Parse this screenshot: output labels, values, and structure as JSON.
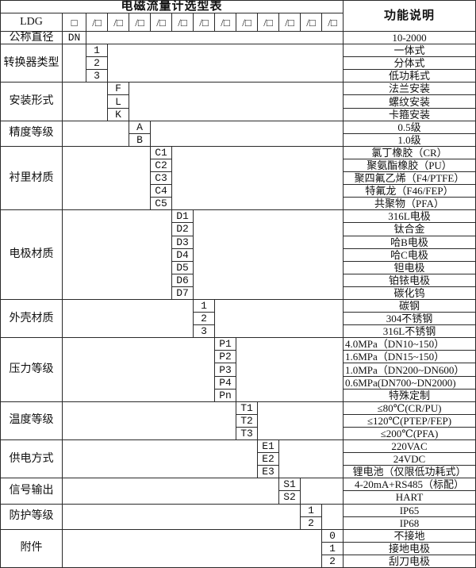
{
  "title": "电磁流量计选型表",
  "colors": {
    "background": "#ffffff",
    "border": "#2a2a2a",
    "text": "#111111"
  },
  "header": {
    "function_col": "功能说明",
    "model_prefix": "LDG",
    "box": "□",
    "slot": "/□",
    "slot_count": 12
  },
  "diameter_row": {
    "label": "公称直径",
    "code": "DN",
    "desc": "10-2000"
  },
  "sections": [
    {
      "label": "转换器类型",
      "col": 3,
      "items": [
        {
          "code": "1",
          "desc": "一体式"
        },
        {
          "code": "2",
          "desc": "分体式"
        },
        {
          "code": "3",
          "desc": "低功耗式"
        }
      ]
    },
    {
      "label": "安装形式",
      "col": 4,
      "items": [
        {
          "code": "F",
          "desc": "法兰安装"
        },
        {
          "code": "L",
          "desc": "螺纹安装"
        },
        {
          "code": "K",
          "desc": "卡箍安装"
        }
      ]
    },
    {
      "label": "精度等级",
      "col": 5,
      "items": [
        {
          "code": "A",
          "desc": "0.5级"
        },
        {
          "code": "B",
          "desc": "1.0级"
        }
      ]
    },
    {
      "label": "衬里材质",
      "col": 6,
      "items": [
        {
          "code": "C1",
          "desc": "氯丁橡胶（CR）"
        },
        {
          "code": "C2",
          "desc": "聚氨酯橡胶（PU）"
        },
        {
          "code": "C3",
          "desc": "聚四氟乙烯（F4/PTFE）"
        },
        {
          "code": "C4",
          "desc": "特氟龙（F46/FEP）"
        },
        {
          "code": "C5",
          "desc": "共聚物（PFA）"
        }
      ]
    },
    {
      "label": "电极材质",
      "col": 7,
      "items": [
        {
          "code": "D1",
          "desc": "316L电极"
        },
        {
          "code": "D2",
          "desc": "钛合金"
        },
        {
          "code": "D3",
          "desc": "哈B电极"
        },
        {
          "code": "D4",
          "desc": "哈C电极"
        },
        {
          "code": "D5",
          "desc": "钽电极"
        },
        {
          "code": "D6",
          "desc": "铂铱电极"
        },
        {
          "code": "D7",
          "desc": "碳化钨"
        }
      ]
    },
    {
      "label": "外壳材质",
      "col": 8,
      "items": [
        {
          "code": "1",
          "desc": "碳钢"
        },
        {
          "code": "2",
          "desc": "304不锈钢"
        },
        {
          "code": "3",
          "desc": "316L不锈钢"
        }
      ]
    },
    {
      "label": "压力等级",
      "col": 9,
      "items": [
        {
          "code": "P1",
          "desc": "4.0MPa（DN10~150）",
          "align": "left"
        },
        {
          "code": "P2",
          "desc": "1.6MPa（DN15~150）",
          "align": "left"
        },
        {
          "code": "P3",
          "desc": "1.0MPa（DN200~DN600）",
          "align": "left"
        },
        {
          "code": "P4",
          "desc": "0.6MPa(DN700~DN2000)",
          "align": "left"
        },
        {
          "code": "Pn",
          "desc": "特殊定制"
        }
      ]
    },
    {
      "label": "温度等级",
      "col": 10,
      "items": [
        {
          "code": "T1",
          "desc": "≤80℃(CR/PU)"
        },
        {
          "code": "T2",
          "desc": "≤120℃(PTEP/FEP)"
        },
        {
          "code": "T3",
          "desc": "≤200℃(PFA)"
        }
      ]
    },
    {
      "label": "供电方式",
      "col": 11,
      "items": [
        {
          "code": "E1",
          "desc": "220VAC"
        },
        {
          "code": "E2",
          "desc": "24VDC"
        },
        {
          "code": "E3",
          "desc": "锂电池（仅限低功耗式）"
        }
      ]
    },
    {
      "label": "信号输出",
      "col": 12,
      "items": [
        {
          "code": "S1",
          "desc": "4-20mA+RS485（标配）"
        },
        {
          "code": "S2",
          "desc": "HART"
        }
      ]
    },
    {
      "label": "防护等级",
      "col": 13,
      "items": [
        {
          "code": "1",
          "desc": "IP65"
        },
        {
          "code": "2",
          "desc": "IP68"
        }
      ]
    },
    {
      "label": "附件",
      "col": 14,
      "items": [
        {
          "code": "0",
          "desc": "不接地"
        },
        {
          "code": "1",
          "desc": "接地电极"
        },
        {
          "code": "2",
          "desc": "刮刀电极"
        }
      ]
    }
  ]
}
